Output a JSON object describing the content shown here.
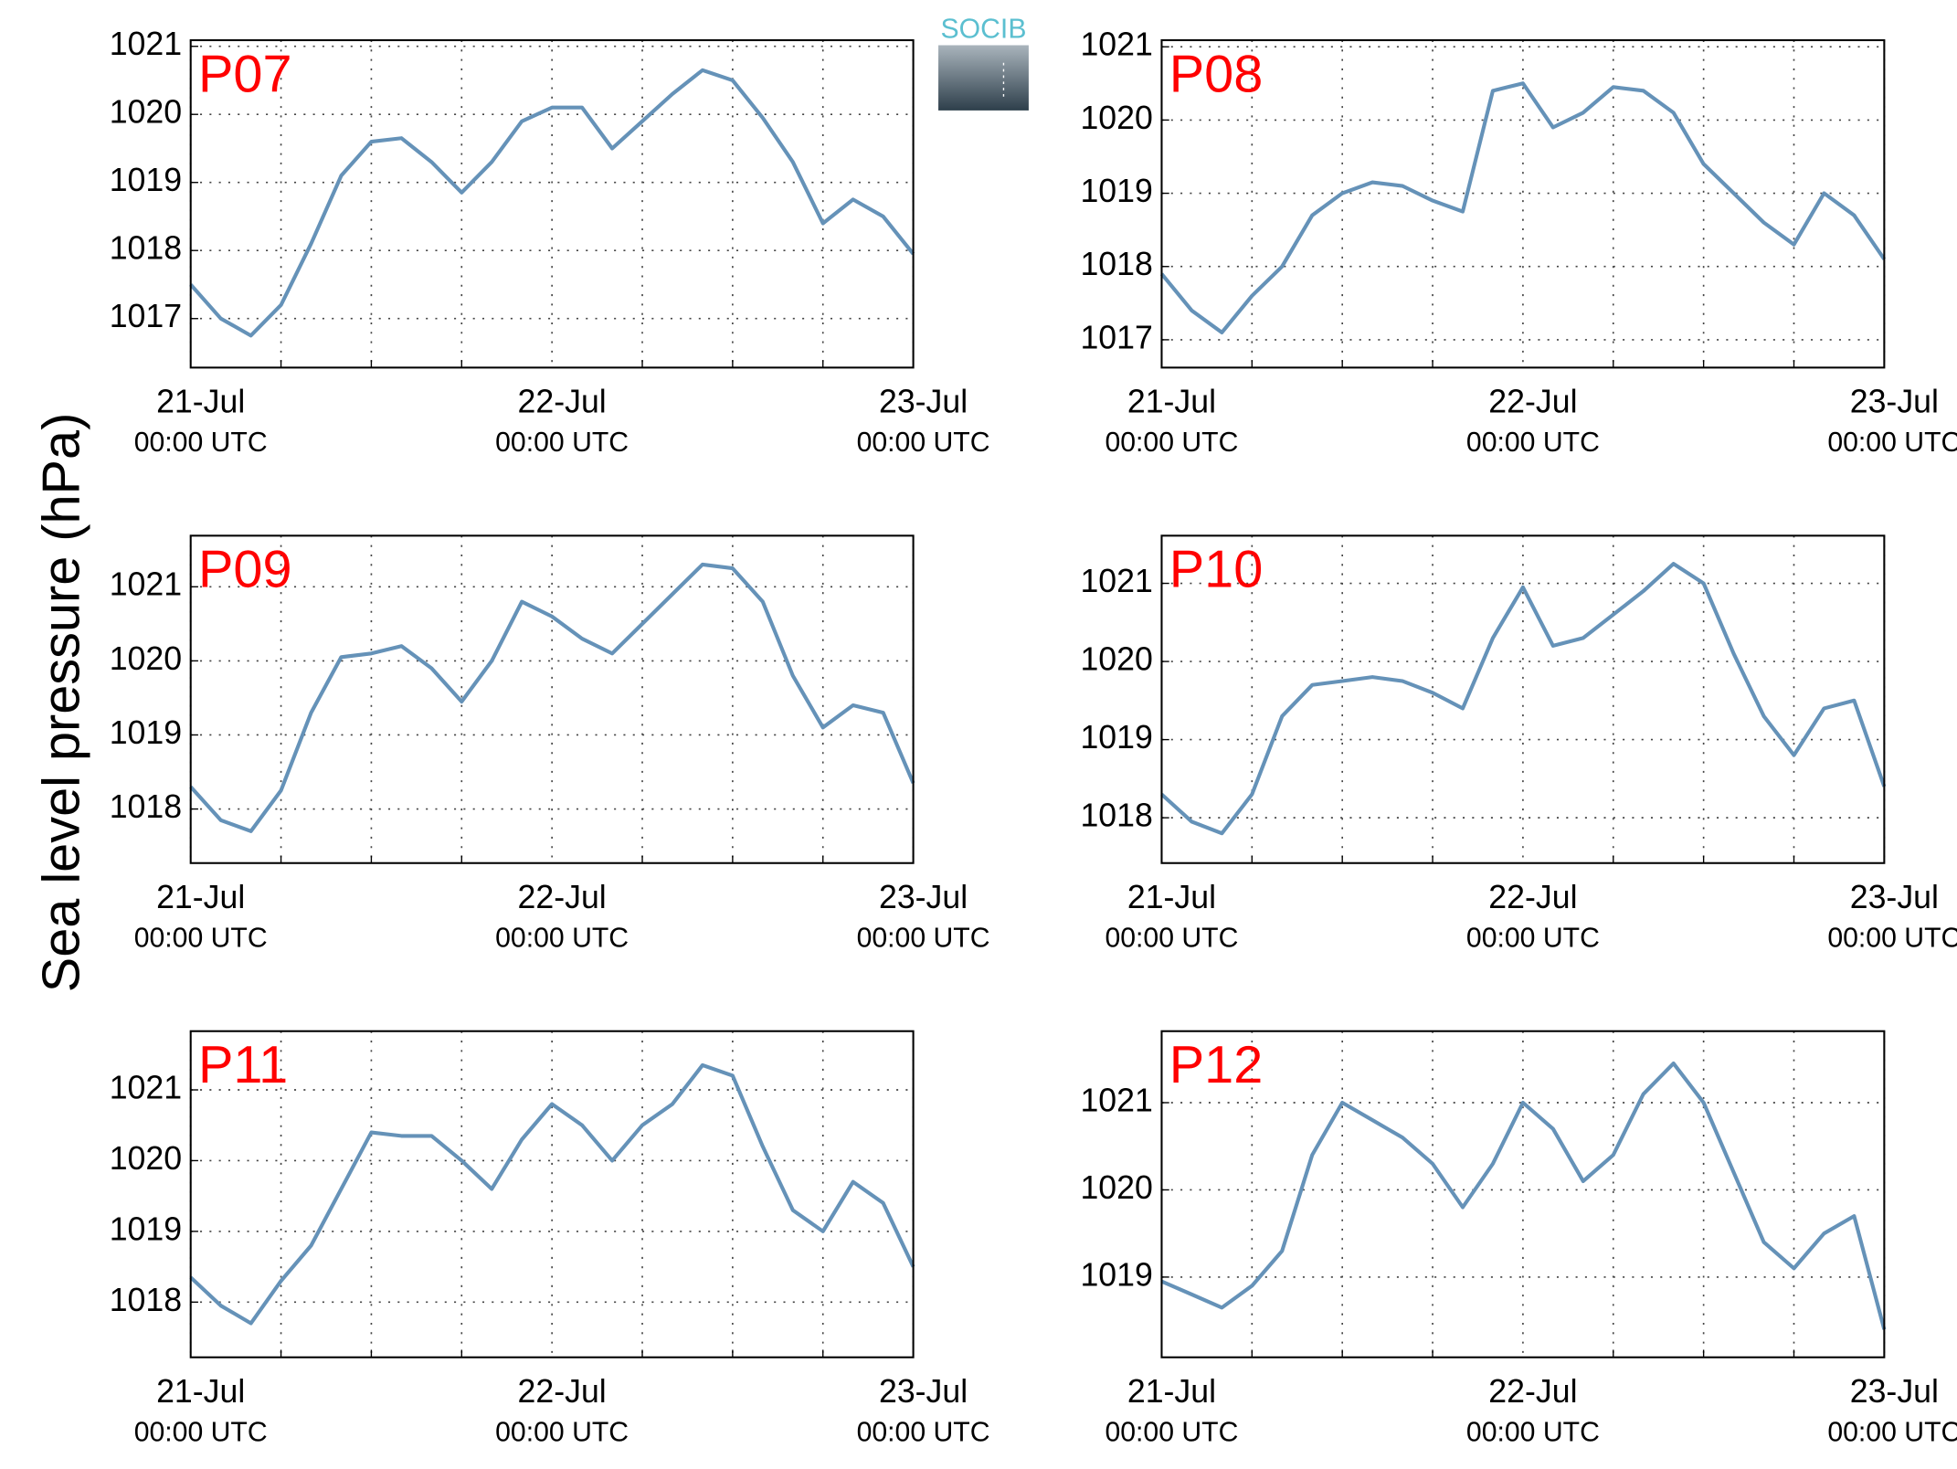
{
  "ylabel": "Sea level pressure (hPa)",
  "logo": "SOCIB",
  "chart_data": [
    {
      "type": "line",
      "title": "P07",
      "color": "#6592b8",
      "x": [
        0,
        2,
        4,
        6,
        8,
        10,
        12,
        14,
        16,
        18,
        20,
        22,
        24,
        26,
        28,
        30,
        32,
        34,
        36,
        38,
        40,
        42,
        44,
        46,
        48
      ],
      "values": [
        1017.5,
        1017.0,
        1016.75,
        1017.2,
        1018.1,
        1019.1,
        1019.6,
        1019.65,
        1019.3,
        1018.85,
        1019.3,
        1019.9,
        1020.1,
        1020.1,
        1019.5,
        1019.9,
        1020.3,
        1020.65,
        1020.5,
        1019.95,
        1019.3,
        1018.4,
        1018.75,
        1018.5,
        1017.95
      ],
      "xlim": [
        0,
        48
      ],
      "ylim": [
        1016.28,
        1021.09
      ],
      "yticks": [
        1017,
        1018,
        1019,
        1020,
        1021
      ],
      "xticks": [
        {
          "value": 0,
          "label": "21-Jul",
          "sublabel": "00:00 UTC"
        },
        {
          "value": 24,
          "label": "22-Jul",
          "sublabel": "00:00 UTC"
        },
        {
          "value": 48,
          "label": "23-Jul",
          "sublabel": "00:00 UTC"
        }
      ],
      "xminorticks": [
        6,
        12,
        18,
        30,
        36,
        42
      ],
      "grid": true
    },
    {
      "type": "line",
      "title": "P08",
      "color": "#6592b8",
      "x": [
        0,
        2,
        4,
        6,
        8,
        10,
        12,
        14,
        16,
        18,
        20,
        22,
        24,
        26,
        28,
        30,
        32,
        34,
        36,
        38,
        40,
        42,
        44,
        46,
        48
      ],
      "values": [
        1017.9,
        1017.4,
        1017.1,
        1017.6,
        1018.0,
        1018.7,
        1019.0,
        1019.15,
        1019.1,
        1018.9,
        1018.75,
        1020.4,
        1020.5,
        1019.9,
        1020.1,
        1020.45,
        1020.4,
        1020.1,
        1019.4,
        1019.0,
        1018.6,
        1018.3,
        1019.0,
        1018.7,
        1018.1
      ],
      "xlim": [
        0,
        48
      ],
      "ylim": [
        1016.62,
        1021.09
      ],
      "yticks": [
        1017,
        1018,
        1019,
        1020,
        1021
      ],
      "xticks": [
        {
          "value": 0,
          "label": "21-Jul",
          "sublabel": "00:00 UTC"
        },
        {
          "value": 24,
          "label": "22-Jul",
          "sublabel": "00:00 UTC"
        },
        {
          "value": 48,
          "label": "23-Jul",
          "sublabel": "00:00 UTC"
        }
      ],
      "xminorticks": [
        6,
        12,
        18,
        30,
        36,
        42
      ],
      "grid": true
    },
    {
      "type": "line",
      "title": "P09",
      "color": "#6592b8",
      "x": [
        0,
        2,
        4,
        6,
        8,
        10,
        12,
        14,
        16,
        18,
        20,
        22,
        24,
        26,
        28,
        30,
        32,
        34,
        36,
        38,
        40,
        42,
        44,
        46,
        48
      ],
      "values": [
        1018.3,
        1017.85,
        1017.7,
        1018.25,
        1019.3,
        1020.05,
        1020.1,
        1020.2,
        1019.9,
        1019.45,
        1020.0,
        1020.8,
        1020.6,
        1020.3,
        1020.1,
        1020.5,
        1020.9,
        1021.3,
        1021.25,
        1020.8,
        1019.8,
        1019.1,
        1019.4,
        1019.3,
        1018.35
      ],
      "xlim": [
        0,
        48
      ],
      "ylim": [
        1017.27,
        1021.69
      ],
      "yticks": [
        1018,
        1019,
        1020,
        1021
      ],
      "xticks": [
        {
          "value": 0,
          "label": "21-Jul",
          "sublabel": "00:00 UTC"
        },
        {
          "value": 24,
          "label": "22-Jul",
          "sublabel": "00:00 UTC"
        },
        {
          "value": 48,
          "label": "23-Jul",
          "sublabel": "00:00 UTC"
        }
      ],
      "xminorticks": [
        6,
        12,
        18,
        30,
        36,
        42
      ],
      "grid": true
    },
    {
      "type": "line",
      "title": "P10",
      "color": "#6592b8",
      "x": [
        0,
        2,
        4,
        6,
        8,
        10,
        12,
        14,
        16,
        18,
        20,
        22,
        24,
        26,
        28,
        30,
        32,
        34,
        36,
        38,
        40,
        42,
        44,
        46,
        48
      ],
      "values": [
        1018.3,
        1017.95,
        1017.8,
        1018.3,
        1019.3,
        1019.7,
        1019.75,
        1019.8,
        1019.75,
        1019.6,
        1019.4,
        1020.3,
        1020.95,
        1020.2,
        1020.3,
        1020.6,
        1020.9,
        1021.25,
        1021.0,
        1020.1,
        1019.3,
        1018.8,
        1019.4,
        1019.5,
        1018.4
      ],
      "xlim": [
        0,
        48
      ],
      "ylim": [
        1017.42,
        1021.61
      ],
      "yticks": [
        1018,
        1019,
        1020,
        1021
      ],
      "xticks": [
        {
          "value": 0,
          "label": "21-Jul",
          "sublabel": "00:00 UTC"
        },
        {
          "value": 24,
          "label": "22-Jul",
          "sublabel": "00:00 UTC"
        },
        {
          "value": 48,
          "label": "23-Jul",
          "sublabel": "00:00 UTC"
        }
      ],
      "xminorticks": [
        6,
        12,
        18,
        30,
        36,
        42
      ],
      "grid": true
    },
    {
      "type": "line",
      "title": "P11",
      "color": "#6592b8",
      "x": [
        0,
        2,
        4,
        6,
        8,
        10,
        12,
        14,
        16,
        18,
        20,
        22,
        24,
        26,
        28,
        30,
        32,
        34,
        36,
        38,
        40,
        42,
        44,
        46,
        48
      ],
      "values": [
        1018.35,
        1017.95,
        1017.7,
        1018.3,
        1018.8,
        1019.6,
        1020.4,
        1020.35,
        1020.35,
        1020.0,
        1019.6,
        1020.3,
        1020.8,
        1020.5,
        1020.0,
        1020.5,
        1020.8,
        1021.35,
        1021.2,
        1020.2,
        1019.3,
        1019.0,
        1019.7,
        1019.4,
        1018.5
      ],
      "xlim": [
        0,
        48
      ],
      "ylim": [
        1017.22,
        1021.83
      ],
      "yticks": [
        1018,
        1019,
        1020,
        1021
      ],
      "xticks": [
        {
          "value": 0,
          "label": "21-Jul",
          "sublabel": "00:00 UTC"
        },
        {
          "value": 24,
          "label": "22-Jul",
          "sublabel": "00:00 UTC"
        },
        {
          "value": 48,
          "label": "23-Jul",
          "sublabel": "00:00 UTC"
        }
      ],
      "xminorticks": [
        6,
        12,
        18,
        30,
        36,
        42
      ],
      "grid": true
    },
    {
      "type": "line",
      "title": "P12",
      "color": "#6592b8",
      "x": [
        0,
        2,
        4,
        6,
        8,
        10,
        12,
        14,
        16,
        18,
        20,
        22,
        24,
        26,
        28,
        30,
        32,
        34,
        36,
        38,
        40,
        42,
        44,
        46,
        48
      ],
      "values": [
        1018.95,
        1018.8,
        1018.65,
        1018.9,
        1019.3,
        1020.4,
        1021.0,
        1020.8,
        1020.6,
        1020.3,
        1019.8,
        1020.3,
        1021.0,
        1020.7,
        1020.1,
        1020.4,
        1021.1,
        1021.45,
        1021.0,
        1020.2,
        1019.4,
        1019.1,
        1019.5,
        1019.7,
        1018.4
      ],
      "xlim": [
        0,
        48
      ],
      "ylim": [
        1018.08,
        1021.82
      ],
      "yticks": [
        1019,
        1020,
        1021
      ],
      "xticks": [
        {
          "value": 0,
          "label": "21-Jul",
          "sublabel": "00:00 UTC"
        },
        {
          "value": 24,
          "label": "22-Jul",
          "sublabel": "00:00 UTC"
        },
        {
          "value": 48,
          "label": "23-Jul",
          "sublabel": "00:00 UTC"
        }
      ],
      "xminorticks": [
        6,
        12,
        18,
        30,
        36,
        42
      ],
      "grid": true
    }
  ]
}
